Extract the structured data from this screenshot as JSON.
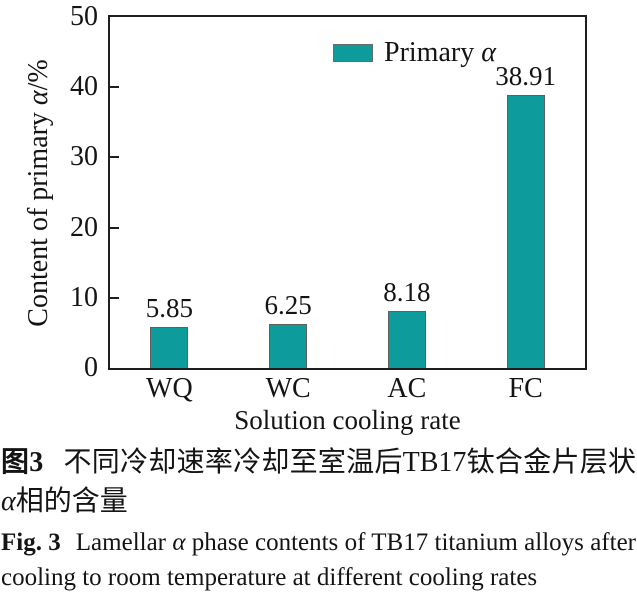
{
  "chart_data": {
    "type": "bar",
    "categories": [
      "WQ",
      "WC",
      "AC",
      "FC"
    ],
    "values": [
      5.85,
      6.25,
      8.18,
      38.91
    ],
    "value_labels": [
      "5.85",
      "6.25",
      "8.18",
      "38.91"
    ],
    "title": "",
    "xlabel": "Solution cooling rate",
    "ylabel": "Content of primary α/%",
    "ylabel_parts": {
      "pre": "Content of primary ",
      "italic": "α",
      "post": "/%"
    },
    "ylim": [
      0,
      50
    ],
    "yticks": [
      0,
      10,
      20,
      30,
      40,
      50
    ],
    "grid": false,
    "legend_position": "top-inside",
    "legend": [
      {
        "label": "Primary α",
        "label_pre": "Primary ",
        "label_italic": "α",
        "color": "#0d9b9b"
      }
    ],
    "bar_color": "#0d9b9b",
    "bar_edge_color": "#5f5f5f",
    "axis_color": "#1e1e1e"
  },
  "captions": {
    "zh": {
      "label": "图3",
      "pre": "不同冷却速率冷却至室温后TB17钛合金片层状",
      "italic": "α",
      "post": "相的含量"
    },
    "en": {
      "label": "Fig. 3",
      "pre": "Lamellar ",
      "italic": "α",
      "post": " phase contents of TB17 titanium alloys after cooling to room temperature at different cooling rates"
    }
  }
}
